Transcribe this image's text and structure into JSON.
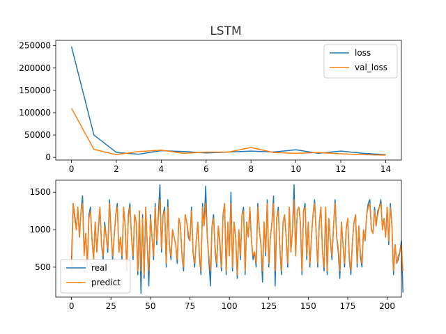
{
  "chart_data": [
    {
      "type": "line",
      "title": "LSTM",
      "xlim": [
        -0.7,
        14.7
      ],
      "ylim": [
        -6000,
        262000
      ],
      "xticks": [
        0,
        2,
        4,
        6,
        8,
        10,
        12,
        14
      ],
      "yticks": [
        0,
        50000,
        100000,
        150000,
        200000,
        250000
      ],
      "ytick_labels": [
        "0",
        "50000",
        "100000",
        "150000",
        "200000",
        "250000"
      ],
      "legend_position": "upper-right",
      "grid": false,
      "x": [
        0,
        1,
        2,
        3,
        4,
        5,
        6,
        7,
        8,
        9,
        10,
        11,
        12,
        13,
        14
      ],
      "series": [
        {
          "name": "loss",
          "color": "#1f77b4",
          "values": [
            248000,
            50000,
            11000,
            7000,
            15000,
            13000,
            10000,
            12000,
            14000,
            12000,
            17000,
            9000,
            14000,
            9000,
            6000
          ]
        },
        {
          "name": "val_loss",
          "color": "#ff7f0e",
          "values": [
            110000,
            18000,
            6000,
            13000,
            16000,
            9000,
            12000,
            12000,
            22000,
            11000,
            9000,
            11000,
            8000,
            6000,
            5000
          ]
        }
      ]
    },
    {
      "type": "line",
      "title": "",
      "xlim": [
        -10,
        209
      ],
      "ylim": [
        100,
        1660
      ],
      "xticks": [
        0,
        25,
        50,
        75,
        100,
        125,
        150,
        175,
        200
      ],
      "yticks": [
        500,
        1000,
        1500
      ],
      "ytick_labels": [
        "500",
        "1000",
        "1500"
      ],
      "legend_position": "lower-left",
      "grid": false,
      "x_start": 0,
      "x_step": 1,
      "series": [
        {
          "name": "real",
          "color": "#1f77b4",
          "values": [
            600,
            1350,
            1200,
            1000,
            1300,
            900,
            1250,
            1450,
            700,
            950,
            500,
            1200,
            1300,
            850,
            600,
            1100,
            700,
            1000,
            1300,
            800,
            600,
            1100,
            900,
            700,
            1400,
            1000,
            600,
            900,
            1200,
            1350,
            700,
            900,
            600,
            1300,
            1050,
            450,
            1200,
            1350,
            900,
            600,
            1200,
            1100,
            400,
            1250,
            150,
            1200,
            350,
            1300,
            800,
            250,
            1200,
            900,
            600,
            1350,
            800,
            1200,
            1600,
            700,
            1200,
            1300,
            500,
            1400,
            800,
            600,
            1000,
            900,
            800,
            550,
            1150,
            1050,
            650,
            450,
            1200,
            1100,
            900,
            850,
            1300,
            700,
            500,
            850,
            1100,
            650,
            400,
            1350,
            1050,
            1580,
            900,
            600,
            250,
            1050,
            1200,
            700,
            500,
            1050,
            800,
            450,
            1200,
            1350,
            400,
            1100,
            650,
            1500,
            450,
            1100,
            900,
            350,
            1000,
            600,
            1200,
            1300,
            400,
            1100,
            900,
            1300,
            850,
            600,
            700,
            500,
            1350,
            1000,
            800,
            300,
            1100,
            650,
            1400,
            500,
            900,
            1100,
            1450,
            250,
            1150,
            1300,
            750,
            400,
            1100,
            1200,
            900,
            500,
            1300,
            700,
            1000,
            1600,
            650,
            1250,
            1300,
            1100,
            400,
            1250,
            1350,
            600,
            1100,
            500,
            900,
            1200,
            1400,
            950,
            500,
            1100,
            1300,
            700,
            450,
            1300,
            400,
            1150,
            850,
            600,
            1050,
            1400,
            900,
            700,
            350,
            1100,
            800,
            500,
            1000,
            1150,
            600,
            400,
            850,
            1100,
            1200,
            500,
            1050,
            650,
            500,
            1000,
            850,
            1200,
            1350,
            1400,
            1000,
            950,
            1300,
            1050,
            1250,
            1300,
            1400,
            1000,
            1150,
            900,
            1300,
            800,
            1350,
            1050,
            400,
            800,
            550,
            600,
            700,
            850,
            160
          ]
        },
        {
          "name": "predict",
          "color": "#ff7f0e",
          "values": [
            450,
            1350,
            1150,
            1000,
            1300,
            900,
            1250,
            1350,
            650,
            950,
            550,
            1150,
            1250,
            850,
            600,
            1100,
            700,
            1050,
            1300,
            800,
            650,
            1050,
            900,
            750,
            1350,
            950,
            650,
            900,
            1200,
            1300,
            700,
            900,
            650,
            1300,
            1050,
            500,
            1150,
            1300,
            900,
            650,
            1200,
            1100,
            450,
            1250,
            450,
            1150,
            400,
            1300,
            800,
            450,
            1150,
            900,
            650,
            1300,
            850,
            1150,
            1400,
            750,
            1200,
            1250,
            550,
            1300,
            800,
            650,
            1000,
            900,
            800,
            600,
            1150,
            1050,
            650,
            500,
            1200,
            1100,
            950,
            850,
            1250,
            700,
            550,
            850,
            1100,
            700,
            450,
            1300,
            1050,
            1350,
            900,
            650,
            450,
            1050,
            1150,
            750,
            550,
            1050,
            850,
            500,
            1200,
            1350,
            450,
            1100,
            650,
            1350,
            500,
            1100,
            900,
            400,
            1000,
            650,
            1200,
            1250,
            450,
            1100,
            900,
            1300,
            850,
            650,
            700,
            550,
            1300,
            1000,
            800,
            450,
            1100,
            700,
            1350,
            550,
            900,
            1100,
            1350,
            450,
            1150,
            1250,
            750,
            450,
            1100,
            1200,
            900,
            550,
            1300,
            700,
            1000,
            1400,
            650,
            1250,
            1300,
            1100,
            450,
            1250,
            1300,
            650,
            1100,
            550,
            900,
            1200,
            1350,
            950,
            550,
            1100,
            1300,
            700,
            500,
            1300,
            450,
            1150,
            850,
            650,
            1050,
            1350,
            900,
            750,
            450,
            1100,
            800,
            550,
            1000,
            1150,
            650,
            450,
            850,
            1100,
            1200,
            550,
            1050,
            700,
            550,
            1000,
            850,
            1200,
            1300,
            1350,
            1000,
            950,
            1250,
            1050,
            1200,
            1300,
            1350,
            1000,
            1150,
            900,
            1300,
            850,
            1300,
            1050,
            450,
            800,
            550,
            650,
            700,
            800,
            450
          ]
        }
      ]
    }
  ]
}
